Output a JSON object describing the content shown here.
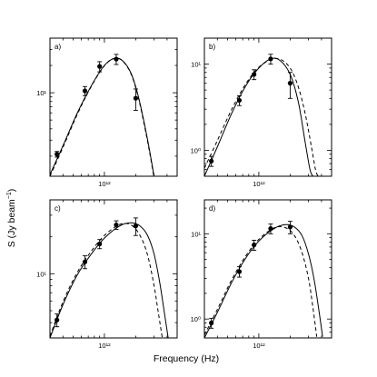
{
  "figure": {
    "ylabel": "S (Jy beam",
    "ylabel_sup": "−1",
    "ylabel_tail": ")",
    "xlabel": "Frequency (Hz)"
  },
  "chart_data": [
    {
      "type": "scatter",
      "panel_label": "a)",
      "x_scale": "log",
      "y_scale": "log",
      "xlim": [
        300000000000.0,
        5000000000000.0
      ],
      "ylim": [
        1.2,
        40
      ],
      "x_ticks": [
        {
          "value": 1000000000000.0,
          "label": "10¹²"
        }
      ],
      "y_ticks": [
        {
          "value": 10,
          "label": "10¹"
        }
      ],
      "series": [
        {
          "role": "data",
          "x": [
            350000000000.0,
            650000000000.0,
            900000000000.0,
            1300000000000.0,
            2000000000000.0
          ],
          "y": [
            2.1,
            10.5,
            19.5,
            23.5,
            8.7
          ],
          "yerr": [
            0.15,
            1.2,
            2.5,
            3.0,
            2.3
          ]
        },
        {
          "role": "fit-solid",
          "x": [
            300000000000.0,
            400000000000.0,
            550000000000.0,
            750000000000.0,
            1000000000000.0,
            1250000000000.0,
            1500000000000.0,
            1800000000000.0,
            2100000000000.0,
            2400000000000.0,
            2700000000000.0,
            3000000000000.0
          ],
          "y": [
            1.25,
            2.6,
            6.0,
            12.0,
            20.0,
            24.0,
            22.5,
            16.5,
            9.5,
            4.8,
            2.4,
            1.2
          ]
        },
        {
          "role": "fit-dashed",
          "x": [
            300000000000.0,
            400000000000.0,
            550000000000.0,
            750000000000.0,
            1000000000000.0,
            1250000000000.0,
            1500000000000.0,
            1800000000000.0,
            2100000000000.0,
            2400000000000.0,
            2700000000000.0,
            3000000000000.0
          ],
          "y": [
            1.2,
            2.5,
            5.8,
            11.8,
            19.8,
            23.9,
            22.3,
            16.2,
            9.2,
            4.6,
            2.3,
            1.15
          ]
        }
      ]
    },
    {
      "type": "scatter",
      "panel_label": "b)",
      "x_scale": "log",
      "y_scale": "log",
      "xlim": [
        300000000000.0,
        5000000000000.0
      ],
      "ylim": [
        0.5,
        20
      ],
      "x_ticks": [
        {
          "value": 1000000000000.0,
          "label": "10¹²"
        }
      ],
      "y_ticks": [
        {
          "value": 1,
          "label": "10⁰"
        },
        {
          "value": 10,
          "label": "10¹"
        }
      ],
      "series": [
        {
          "role": "data",
          "x": [
            350000000000.0,
            650000000000.0,
            900000000000.0,
            1300000000000.0,
            2000000000000.0
          ],
          "y": [
            0.75,
            3.8,
            7.6,
            11.5,
            6.0
          ],
          "yerr": [
            0.1,
            0.5,
            1.0,
            1.5,
            2.0
          ]
        },
        {
          "role": "fit-solid",
          "x": [
            300000000000.0,
            400000000000.0,
            550000000000.0,
            750000000000.0,
            1000000000000.0,
            1300000000000.0,
            1600000000000.0,
            2000000000000.0,
            2400000000000.0,
            2800000000000.0,
            3100000000000.0,
            3300000000000.0
          ],
          "y": [
            0.5,
            1.1,
            2.7,
            5.6,
            9.0,
            11.5,
            11.0,
            7.6,
            3.6,
            1.2,
            0.6,
            0.5
          ]
        },
        {
          "role": "fit-dashed",
          "x": [
            300000000000.0,
            400000000000.0,
            550000000000.0,
            750000000000.0,
            1000000000000.0,
            1300000000000.0,
            1600000000000.0,
            2000000000000.0,
            2400000000000.0,
            2800000000000.0,
            3200000000000.0,
            3500000000000.0,
            3700000000000.0
          ],
          "y": [
            0.62,
            1.3,
            3.0,
            5.9,
            9.2,
            11.2,
            11.4,
            9.0,
            5.4,
            2.6,
            1.1,
            0.6,
            0.5
          ]
        }
      ]
    },
    {
      "type": "scatter",
      "panel_label": "c)",
      "x_scale": "log",
      "y_scale": "log",
      "xlim": [
        300000000000.0,
        5000000000000.0
      ],
      "ylim": [
        3.0,
        40
      ],
      "x_ticks": [
        {
          "value": 1000000000000.0,
          "label": "10¹²"
        }
      ],
      "y_ticks": [
        {
          "value": 10,
          "label": "10¹"
        }
      ],
      "series": [
        {
          "role": "data",
          "x": [
            350000000000.0,
            650000000000.0,
            900000000000.0,
            1300000000000.0,
            2000000000000.0
          ],
          "y": [
            4.2,
            12.5,
            17.5,
            25.0,
            24.5
          ],
          "yerr": [
            0.5,
            1.5,
            1.5,
            2.0,
            4.0
          ]
        },
        {
          "role": "fit-solid",
          "x": [
            300000000000.0,
            400000000000.0,
            550000000000.0,
            750000000000.0,
            1000000000000.0,
            1400000000000.0,
            1800000000000.0,
            2200000000000.0,
            2600000000000.0,
            3000000000000.0,
            3400000000000.0,
            3800000000000.0,
            4100000000000.0
          ],
          "y": [
            3.0,
            5.6,
            9.8,
            14.5,
            19.5,
            24.5,
            26.0,
            24.5,
            20.5,
            14.5,
            8.5,
            4.6,
            3.0
          ]
        },
        {
          "role": "fit-dashed",
          "x": [
            300000000000.0,
            400000000000.0,
            550000000000.0,
            750000000000.0,
            1000000000000.0,
            1400000000000.0,
            1800000000000.0,
            2200000000000.0,
            2600000000000.0,
            3000000000000.0,
            3300000000000.0,
            3600000000000.0
          ],
          "y": [
            3.1,
            5.9,
            10.3,
            15.3,
            20.5,
            25.2,
            25.0,
            20.5,
            14.2,
            8.0,
            4.8,
            3.0
          ]
        }
      ]
    },
    {
      "type": "scatter",
      "panel_label": "d)",
      "x_scale": "log",
      "y_scale": "log",
      "xlim": [
        300000000000.0,
        5000000000000.0
      ],
      "ylim": [
        0.6,
        25
      ],
      "x_ticks": [
        {
          "value": 1000000000000.0,
          "label": "10¹²"
        }
      ],
      "y_ticks": [
        {
          "value": 1,
          "label": "10⁰"
        },
        {
          "value": 10,
          "label": "10¹"
        }
      ],
      "series": [
        {
          "role": "data",
          "x": [
            350000000000.0,
            650000000000.0,
            900000000000.0,
            1300000000000.0,
            2000000000000.0
          ],
          "y": [
            0.9,
            3.6,
            7.4,
            11.5,
            12.0
          ],
          "yerr": [
            0.12,
            0.5,
            1.0,
            1.5,
            2.0
          ]
        },
        {
          "role": "fit-solid",
          "x": [
            300000000000.0,
            400000000000.0,
            550000000000.0,
            750000000000.0,
            1000000000000.0,
            1400000000000.0,
            1800000000000.0,
            2200000000000.0,
            2600000000000.0,
            3000000000000.0,
            3400000000000.0,
            3800000000000.0,
            4100000000000.0
          ],
          "y": [
            0.6,
            1.2,
            2.7,
            5.2,
            8.2,
            11.5,
            12.8,
            12.0,
            9.5,
            5.8,
            2.9,
            1.2,
            0.62
          ]
        },
        {
          "role": "fit-dashed",
          "x": [
            300000000000.0,
            400000000000.0,
            550000000000.0,
            750000000000.0,
            1000000000000.0,
            1400000000000.0,
            1800000000000.0,
            2200000000000.0,
            2600000000000.0,
            3000000000000.0,
            3300000000000.0,
            3600000000000.0
          ],
          "y": [
            0.65,
            1.3,
            2.9,
            5.5,
            8.6,
            11.7,
            11.8,
            9.5,
            6.0,
            3.0,
            1.4,
            0.62
          ]
        }
      ]
    }
  ]
}
